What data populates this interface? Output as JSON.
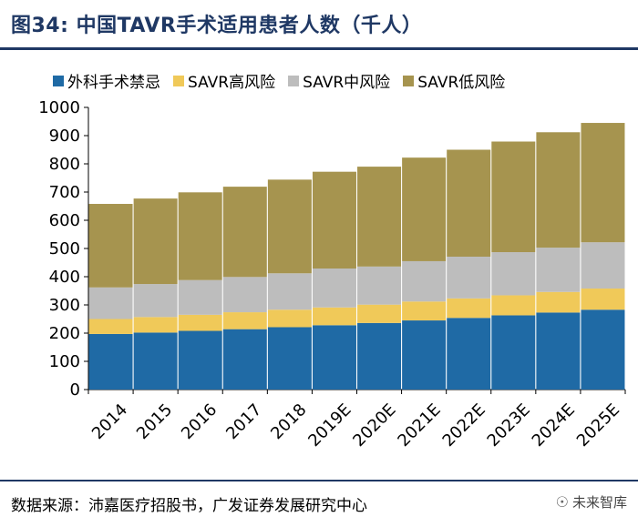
{
  "header": {
    "title": "图34:  中国TAVR手术适用患者人数（千人）"
  },
  "footer": {
    "source": "数据来源：沛嘉医疗招股书，广发证券发展研究中心",
    "brand": "未来智库"
  },
  "colors": {
    "series": [
      "#1f6aa5",
      "#f0c959",
      "#bdbdbd",
      "#a6944f"
    ],
    "title": "#1f3864"
  },
  "chart_data": {
    "type": "bar",
    "stacked": true,
    "title": "中国TAVR手术适用患者人数（千人）",
    "categories": [
      "2014",
      "2015",
      "2016",
      "2017",
      "2018",
      "2019E",
      "2020E",
      "2021E",
      "2022E",
      "2023E",
      "2024E",
      "2025E"
    ],
    "series": [
      {
        "name": "外科手术禁忌",
        "values": [
          197,
          202,
          208,
          214,
          221,
          228,
          236,
          245,
          254,
          263,
          273,
          283
        ]
      },
      {
        "name": "SAVR高风险",
        "values": [
          53,
          55,
          57,
          60,
          62,
          63,
          65,
          67,
          69,
          71,
          73,
          75
        ]
      },
      {
        "name": "SAVR中风险",
        "values": [
          112,
          117,
          123,
          125,
          129,
          138,
          135,
          143,
          148,
          153,
          157,
          164
        ]
      },
      {
        "name": "SAVR低风险",
        "values": [
          296,
          303,
          311,
          320,
          332,
          343,
          354,
          367,
          379,
          392,
          409,
          423
        ]
      }
    ],
    "ylim": [
      0,
      1000
    ],
    "yticks": [
      0,
      100,
      200,
      300,
      400,
      500,
      600,
      700,
      800,
      900,
      1000
    ],
    "xlabel": "",
    "ylabel": "",
    "legend_position": "top"
  }
}
